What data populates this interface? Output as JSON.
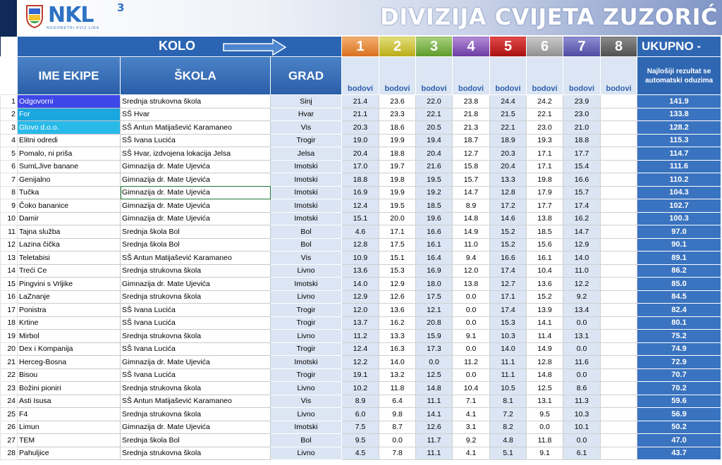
{
  "title": "DIVIZIJA CVIJETA ZUZORIĆ",
  "logo": {
    "text": "NKL",
    "superscript": "3",
    "subtitle": "NOGOMETNI KVIZ LIGA",
    "colors": {
      "primary": "#2d72c4"
    }
  },
  "header": {
    "kolo_label": "KOLO",
    "rounds": [
      "1",
      "2",
      "3",
      "4",
      "5",
      "6",
      "7",
      "8"
    ],
    "total_label": "UKUPNO -",
    "columns": {
      "team": "IME EKIPE",
      "school": "ŠKOLA",
      "city": "GRAD"
    },
    "points_label": "bodovi",
    "note": "Najlošiji rezultat se automatski oduzima"
  },
  "rows": [
    {
      "rank": "1",
      "team": "Odgovorni",
      "school": "Srednja strukovna škola",
      "city": "Sinj",
      "scores": [
        "21.4",
        "23.6",
        "22.0",
        "23.8",
        "24.4",
        "24.2",
        "23.9",
        ""
      ],
      "total": "141.9"
    },
    {
      "rank": "2",
      "team": "For",
      "school": "SŠ Hvar",
      "city": "Hvar",
      "scores": [
        "21.1",
        "23.3",
        "22.1",
        "21.8",
        "21.5",
        "22.1",
        "23.0",
        ""
      ],
      "total": "133.8"
    },
    {
      "rank": "3",
      "team": "Glovo d.o.o.",
      "school": "SŠ Antun Matijašević Karamaneo",
      "city": "Vis",
      "scores": [
        "20.3",
        "18.6",
        "20.5",
        "21.3",
        "22.1",
        "23.0",
        "21.0",
        ""
      ],
      "total": "128.2"
    },
    {
      "rank": "4",
      "team": "Elitni odredi",
      "school": "SŠ Ivana Lucića",
      "city": "Trogir",
      "scores": [
        "19.0",
        "19.9",
        "19.4",
        "18.7",
        "18.9",
        "19.3",
        "18.8",
        ""
      ],
      "total": "115.3"
    },
    {
      "rank": "5",
      "team": "Pomalo, ni priša",
      "school": "SŠ Hvar, izdvojena lokacija Jelsa",
      "city": "Jelsa",
      "scores": [
        "20.4",
        "18.8",
        "20.4",
        "12.7",
        "20.3",
        "17.1",
        "17.7",
        ""
      ],
      "total": "114.7"
    },
    {
      "rank": "6",
      "team": "SumLJive banane",
      "school": "Gimnazija dr. Mate Ujevića",
      "city": "Imotski",
      "scores": [
        "17.0",
        "19.7",
        "21.6",
        "15.8",
        "20.4",
        "17.1",
        "15.4",
        ""
      ],
      "total": "111.6"
    },
    {
      "rank": "7",
      "team": "Genijalno",
      "school": "Gimnazija dr. Mate Ujevića",
      "city": "Imotski",
      "scores": [
        "18.8",
        "19.8",
        "19.5",
        "15.7",
        "13.3",
        "19.8",
        "16.6",
        ""
      ],
      "total": "110.2"
    },
    {
      "rank": "8",
      "team": "Tučka",
      "school": "Gimnazija dr. Mate Ujevića",
      "city": "Imotski",
      "scores": [
        "16.9",
        "19.9",
        "19.2",
        "14.7",
        "12.8",
        "17.9",
        "15.7",
        ""
      ],
      "total": "104.3"
    },
    {
      "rank": "9",
      "team": "Čoko bananice",
      "school": "Gimnazija dr. Mate Ujevića",
      "city": "Imotski",
      "scores": [
        "12.4",
        "19.5",
        "18.5",
        "8.9",
        "17.2",
        "17.7",
        "17.4",
        ""
      ],
      "total": "102.7"
    },
    {
      "rank": "10",
      "team": "Damir",
      "school": "Gimnazija dr. Mate Ujevića",
      "city": "Imotski",
      "scores": [
        "15.1",
        "20.0",
        "19.6",
        "14.8",
        "14.6",
        "13.8",
        "16.2",
        ""
      ],
      "total": "100.3"
    },
    {
      "rank": "11",
      "team": "Tajna služba",
      "school": "Srednja škola Bol",
      "city": "Bol",
      "scores": [
        "4.6",
        "17.1",
        "16.6",
        "14.9",
        "15.2",
        "18.5",
        "14.7",
        ""
      ],
      "total": "97.0"
    },
    {
      "rank": "12",
      "team": "Lazina čička",
      "school": "Srednja škola Bol",
      "city": "Bol",
      "scores": [
        "12.8",
        "17.5",
        "16.1",
        "11.0",
        "15.2",
        "15.6",
        "12.9",
        ""
      ],
      "total": "90.1"
    },
    {
      "rank": "13",
      "team": "Teletabisi",
      "school": "SŠ Antun Matijašević Karamaneo",
      "city": "Vis",
      "scores": [
        "10.9",
        "15.1",
        "16.4",
        "9.4",
        "16.6",
        "16.1",
        "14.0",
        ""
      ],
      "total": "89.1"
    },
    {
      "rank": "14",
      "team": "Treći Ce",
      "school": "Srednja strukovna škola",
      "city": "Livno",
      "scores": [
        "13.6",
        "15.3",
        "16.9",
        "12.0",
        "17.4",
        "10.4",
        "11.0",
        ""
      ],
      "total": "86.2"
    },
    {
      "rank": "15",
      "team": "Pingvini s Vrljike",
      "school": "Gimnazija dr. Mate Ujevića",
      "city": "Imotski",
      "scores": [
        "14.0",
        "12.9",
        "18.0",
        "13.8",
        "12.7",
        "13.6",
        "12.2",
        ""
      ],
      "total": "85.0"
    },
    {
      "rank": "16",
      "team": "LaZnanje",
      "school": "Srednja strukovna škola",
      "city": "Livno",
      "scores": [
        "12.9",
        "12.6",
        "17.5",
        "0.0",
        "17.1",
        "15.2",
        "9.2",
        ""
      ],
      "total": "84.5"
    },
    {
      "rank": "17",
      "team": "Ponistra",
      "school": "SŠ Ivana Lucića",
      "city": "Trogir",
      "scores": [
        "12.0",
        "13.6",
        "12.1",
        "0.0",
        "17.4",
        "13.9",
        "13.4",
        ""
      ],
      "total": "82.4"
    },
    {
      "rank": "18",
      "team": "Krtine",
      "school": "SŠ Ivana Lucića",
      "city": "Trogir",
      "scores": [
        "13.7",
        "16.2",
        "20.8",
        "0.0",
        "15.3",
        "14.1",
        "0.0",
        ""
      ],
      "total": "80.1"
    },
    {
      "rank": "19",
      "team": "Mirbol",
      "school": "Srednja strukovna škola",
      "city": "Livno",
      "scores": [
        "11.2",
        "13.3",
        "15.9",
        "9.1",
        "10.3",
        "11.4",
        "13.1",
        ""
      ],
      "total": "75.2"
    },
    {
      "rank": "20",
      "team": "Dex i Kompanija",
      "school": "SŠ Ivana Lucića",
      "city": "Trogir",
      "scores": [
        "12.4",
        "16.3",
        "17.3",
        "0.0",
        "14.0",
        "14.9",
        "0.0",
        ""
      ],
      "total": "74.9"
    },
    {
      "rank": "21",
      "team": "Herceg-Bosna",
      "school": "Gimnazija dr. Mate Ujevića",
      "city": "Imotski",
      "scores": [
        "12.2",
        "14.0",
        "0.0",
        "11.2",
        "11.1",
        "12.8",
        "11.6",
        ""
      ],
      "total": "72.9"
    },
    {
      "rank": "22",
      "team": "Bisou",
      "school": "SŠ Ivana Lucića",
      "city": "Trogir",
      "scores": [
        "19.1",
        "13.2",
        "12.5",
        "0.0",
        "11.1",
        "14.8",
        "0.0",
        ""
      ],
      "total": "70.7"
    },
    {
      "rank": "23",
      "team": "Božini pioniri",
      "school": "Srednja strukovna škola",
      "city": "Livno",
      "scores": [
        "10.2",
        "11.8",
        "14.8",
        "10.4",
        "10.5",
        "12.5",
        "8.6",
        ""
      ],
      "total": "70.2"
    },
    {
      "rank": "24",
      "team": "Asti Isusa",
      "school": "SŠ Antun Matijašević Karamaneo",
      "city": "Vis",
      "scores": [
        "8.9",
        "6.4",
        "11.1",
        "7.1",
        "8.1",
        "13.1",
        "11.3",
        ""
      ],
      "total": "59.6"
    },
    {
      "rank": "25",
      "team": "F4",
      "school": "Srednja strukovna škola",
      "city": "Livno",
      "scores": [
        "6.0",
        "9.8",
        "14.1",
        "4.1",
        "7.2",
        "9.5",
        "10.3",
        ""
      ],
      "total": "56.9"
    },
    {
      "rank": "26",
      "team": "Limun",
      "school": "Gimnazija dr. Mate Ujevića",
      "city": "Imotski",
      "scores": [
        "7.5",
        "8.7",
        "12.6",
        "3.1",
        "8.2",
        "0.0",
        "10.1",
        ""
      ],
      "total": "50.2"
    },
    {
      "rank": "27",
      "team": "TEM",
      "school": "Srednja škola Bol",
      "city": "Bol",
      "scores": [
        "9.5",
        "0.0",
        "11.7",
        "9.2",
        "4.8",
        "11.8",
        "0.0",
        ""
      ],
      "total": "47.0"
    },
    {
      "rank": "28",
      "team": "Pahuljice",
      "school": "Srednja strukovna škola",
      "city": "Livno",
      "scores": [
        "4.5",
        "7.8",
        "11.1",
        "4.1",
        "5.1",
        "9.1",
        "6.1",
        ""
      ],
      "total": "43.7"
    }
  ]
}
